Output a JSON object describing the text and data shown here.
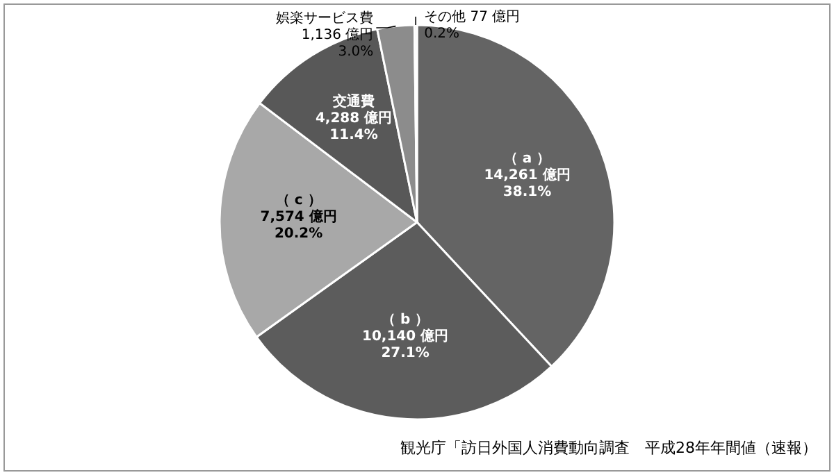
{
  "chart_data": {
    "type": "pie",
    "categories": [
      "（ a ）",
      "（ b ）",
      "（ c ）",
      "交通費",
      "娯楽サービス費",
      "その他"
    ],
    "values": [
      14261,
      10140,
      7574,
      4288,
      1136,
      77
    ],
    "value_labels": [
      "14,261 億円\n38.1%",
      "10,140 億円\n27.1%",
      "7,574 億円\n20.2%",
      "4,288 億円\n11.4%",
      "1,136 億円\n3.0%",
      "77 億円\n0.2%"
    ],
    "colors": [
      "#646464",
      "#5c5c5c",
      "#a8a8a8",
      "#585858",
      "#8c8c8c",
      "#e8e8e8"
    ],
    "annotations": [
      "観光庁「訪日外国人消費動向調査　平成28年年間値（速報）"
    ]
  }
}
